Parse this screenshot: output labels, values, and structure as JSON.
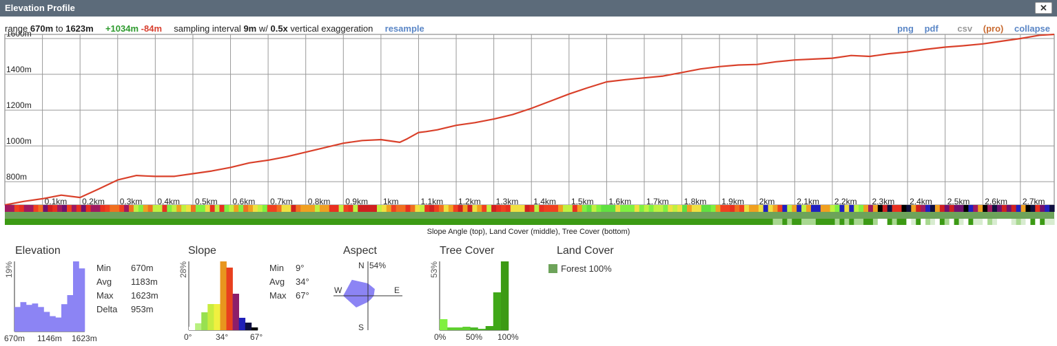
{
  "window": {
    "title": "Elevation Profile",
    "close_label": "✕"
  },
  "info": {
    "range_prefix": "range",
    "range_min": "670m",
    "range_to": "to",
    "range_max": "1623m",
    "gain": "+1034m",
    "loss": "-84m",
    "sampling_prefix": "sampling interval",
    "sampling_value": "9m",
    "sampling_mid": "w/",
    "exaggeration_value": "0.5x",
    "exaggeration_suffix": "vertical exaggeration",
    "resample_label": "resample"
  },
  "actions": {
    "png": "png",
    "pdf": "pdf",
    "csv": "csv",
    "pro": "(pro)",
    "collapse": "collapse"
  },
  "colors": {
    "line": "#d9402a",
    "grid": "#999999",
    "histogram": "#8c84f4",
    "forest": "#6da35a"
  },
  "chart_data": [
    {
      "type": "line",
      "title": "",
      "xlabel": "",
      "ylabel": "",
      "x_tick_labels": [
        "0.1km",
        "0.2km",
        "0.3km",
        "0.4km",
        "0.5km",
        "0.6km",
        "0.7km",
        "0.8km",
        "0.9km",
        "1km",
        "1.1km",
        "1.2km",
        "1.3km",
        "1.4km",
        "1.5km",
        "1.6km",
        "1.7km",
        "1.8km",
        "1.9km",
        "2km",
        "2.1km",
        "2.2km",
        "2.3km",
        "2.4km",
        "2.5km",
        "2.6km",
        "2.7km"
      ],
      "y_tick_labels": [
        "800m",
        "1000m",
        "1200m",
        "1400m",
        "1600m"
      ],
      "xlim": [
        0,
        2.79
      ],
      "ylim": [
        670,
        1623
      ],
      "y_ticks": [
        800,
        1000,
        1200,
        1400,
        1600
      ],
      "grid": true,
      "series": [
        {
          "x": [
            0,
            0.05,
            0.1,
            0.15,
            0.2,
            0.25,
            0.3,
            0.35,
            0.375,
            0.4,
            0.45,
            0.5,
            0.55,
            0.6,
            0.65,
            0.7,
            0.75,
            0.8,
            0.85,
            0.9,
            0.95,
            1.0,
            1.05,
            1.07,
            1.1,
            1.12,
            1.15,
            1.2,
            1.25,
            1.3,
            1.35,
            1.4,
            1.45,
            1.5,
            1.55,
            1.6,
            1.65,
            1.7,
            1.75,
            1.8,
            1.85,
            1.9,
            1.95,
            2.0,
            2.05,
            2.1,
            2.15,
            2.2,
            2.25,
            2.3,
            2.35,
            2.4,
            2.45,
            2.5,
            2.55,
            2.6,
            2.65,
            2.7,
            2.75,
            2.79
          ],
          "y": [
            670,
            690,
            705,
            725,
            712,
            760,
            810,
            835,
            832,
            830,
            830,
            845,
            860,
            880,
            905,
            920,
            940,
            965,
            990,
            1015,
            1030,
            1035,
            1020,
            1040,
            1075,
            1080,
            1090,
            1115,
            1130,
            1150,
            1175,
            1210,
            1250,
            1290,
            1325,
            1358,
            1370,
            1380,
            1390,
            1410,
            1430,
            1443,
            1452,
            1455,
            1470,
            1480,
            1485,
            1490,
            1505,
            1500,
            1515,
            1525,
            1540,
            1552,
            1560,
            1570,
            1585,
            1600,
            1618,
            1623
          ]
        }
      ]
    },
    {
      "type": "bar",
      "title": "Elevation",
      "ylabel": "19%",
      "x_tick_labels": [
        "670m",
        "1146m",
        "1623m"
      ],
      "values": [
        0.35,
        0.42,
        0.38,
        0.4,
        0.35,
        0.28,
        0.22,
        0.2,
        0.39,
        0.52,
        1.0,
        0.9
      ]
    },
    {
      "type": "bar",
      "title": "Slope",
      "ylabel": "28%",
      "x_tick_labels": [
        "0°",
        "34°",
        "67°"
      ],
      "values": [
        0.05,
        0.1,
        0.26,
        0.38,
        0.38,
        1.0,
        0.91,
        0.53,
        0.18,
        0.11,
        0.04
      ],
      "colors": [
        "#ffffff",
        "#b8f080",
        "#98e050",
        "#c8ec40",
        "#f0f040",
        "#e8961e",
        "#e8401e",
        "#8c1e6a",
        "#2020b8",
        "#101040",
        "#000000"
      ]
    },
    {
      "type": "scatter",
      "title": "Aspect",
      "labels": {
        "north": "N",
        "east": "E",
        "south": "S",
        "west": "W",
        "max": "54%"
      },
      "values": [
        0.36,
        0.28,
        0.17,
        0.13,
        0.18,
        0.48,
        0.72,
        0.66
      ]
    },
    {
      "type": "bar",
      "title": "Tree Cover",
      "ylabel": "53%",
      "x_tick_labels": [
        "0%",
        "50%",
        "100%"
      ],
      "values": [
        0.16,
        0.04,
        0.04,
        0.05,
        0.04,
        0.02,
        0.06,
        0.55,
        1.0
      ],
      "colors": [
        "#80f040",
        "#60d030",
        "#60d030",
        "#60d030",
        "#4cb828",
        "#4cb828",
        "#40a818",
        "#40a818",
        "#3c9a14"
      ]
    },
    {
      "type": "table",
      "title": "Land Cover",
      "categories": [
        "Forest"
      ],
      "values": [
        100
      ]
    }
  ],
  "stats": {
    "elevation": [
      {
        "k": "Min",
        "v": "670m"
      },
      {
        "k": "Avg",
        "v": "1183m"
      },
      {
        "k": "Max",
        "v": "1623m"
      },
      {
        "k": "Delta",
        "v": "953m"
      }
    ],
    "slope": [
      {
        "k": "Min",
        "v": "9°"
      },
      {
        "k": "Avg",
        "v": "34°"
      },
      {
        "k": "Max",
        "v": "67°"
      }
    ]
  },
  "land_cover_label": "Forest 100%",
  "strip_caption": "Slope Angle (top), Land Cover (middle), Tree Cover (bottom)"
}
